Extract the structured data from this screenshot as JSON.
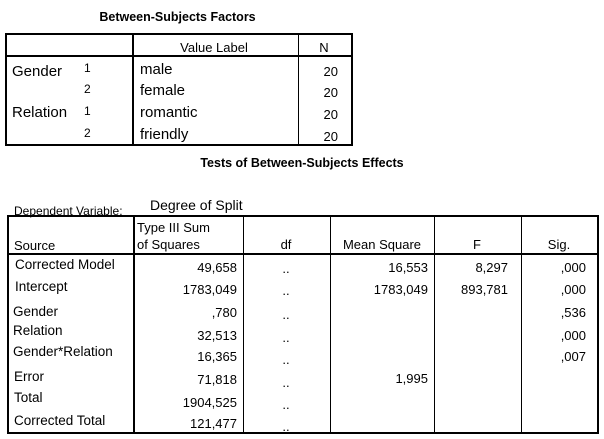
{
  "factors": {
    "title": "Between-Subjects Factors",
    "headers": {
      "value_label": "Value Label",
      "n": "N"
    },
    "rows": [
      {
        "factor": "Gender",
        "level": "1",
        "value_label": "male",
        "n": "20"
      },
      {
        "factor": "",
        "level": "2",
        "value_label": "female",
        "n": "20"
      },
      {
        "factor": "Relation",
        "level": "1",
        "value_label": "romantic",
        "n": "20"
      },
      {
        "factor": "",
        "level": "2",
        "value_label": "friendly",
        "n": "20"
      }
    ]
  },
  "effects": {
    "title": "Tests of Between-Subjects Effects",
    "dependent_label": "Dependent Variable:",
    "dependent_value": "Degree of Split",
    "headers": {
      "source": "Source",
      "ss_line1": "Type III Sum",
      "ss_line2": "of Squares",
      "df": "df",
      "ms": "Mean Square",
      "f": "F",
      "sig": "Sig."
    },
    "rows": [
      {
        "source": "Corrected Model",
        "ss": "49,658",
        "df": "..",
        "ms": "16,553",
        "f": "8,297",
        "sig": ",000"
      },
      {
        "source": "Intercept",
        "ss": "1783,049",
        "df": "..",
        "ms": "1783,049",
        "f": "893,781",
        "sig": ",000"
      },
      {
        "source": "Gender",
        "ss": ",780",
        "df": "..",
        "ms": "",
        "f": "",
        "sig": ",536"
      },
      {
        "source": "Relation",
        "ss": "32,513",
        "df": "..",
        "ms": "",
        "f": "",
        "sig": ",000"
      },
      {
        "source": "Gender*Relation",
        "ss": "16,365",
        "df": "..",
        "ms": "",
        "f": "",
        "sig": ",007"
      },
      {
        "source": "Error",
        "ss": "71,818",
        "df": "..",
        "ms": "1,995",
        "f": "",
        "sig": ""
      },
      {
        "source": "Total",
        "ss": "1904,525",
        "df": "..",
        "ms": "",
        "f": "",
        "sig": ""
      },
      {
        "source": "Corrected Total",
        "ss": "121,477",
        "df": "..",
        "ms": "",
        "f": "",
        "sig": ""
      }
    ]
  }
}
